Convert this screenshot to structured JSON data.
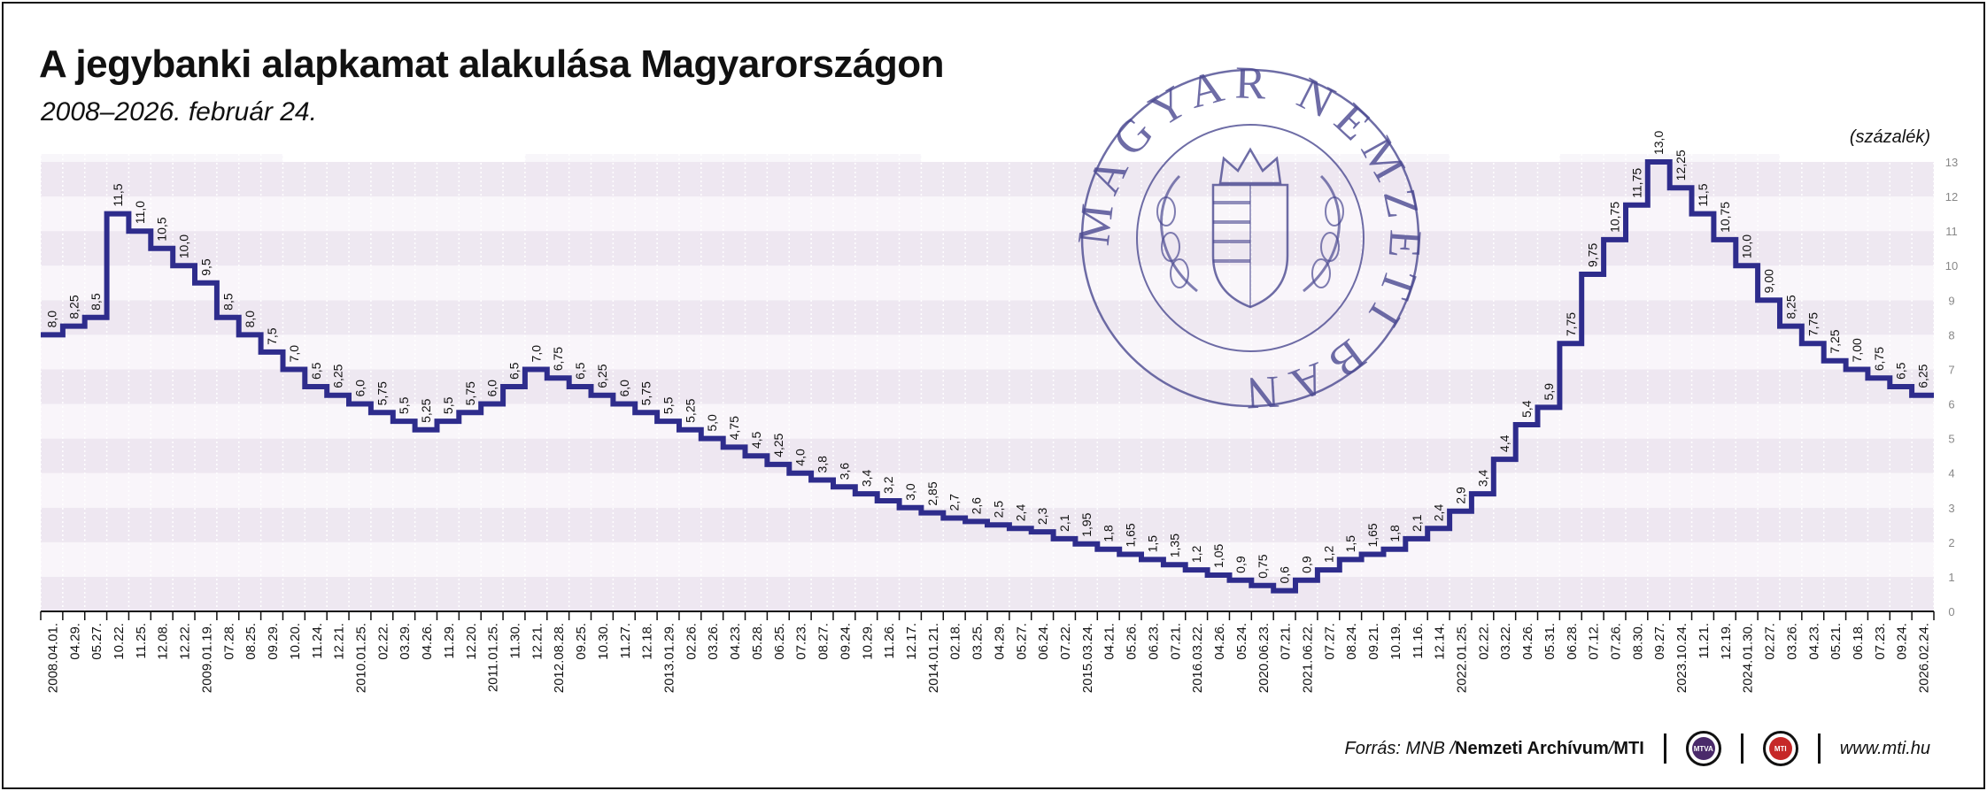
{
  "header": {
    "title": "A jegybanki alapkamat alakulása Magyarországon",
    "subtitle": "2008–2026. február 24.",
    "unit": "(százalék)"
  },
  "seal": {
    "text": "MAGYAR NEMZETI BANK",
    "color": "#4a4890"
  },
  "footer": {
    "source_prefix": "Forrás: MNB / ",
    "source_archive": "Nemzeti Archívum",
    "source_sep": " / ",
    "source_mti": "MTI",
    "logo1": "MTVA",
    "logo2": "MTI",
    "url": "www.mti.hu"
  },
  "colors": {
    "line": "#2e2c8c",
    "band_dark": "#ece6f0",
    "band_light": "#f8f5f9",
    "vband": "#f3eef5",
    "logo1": "#4a2a6a",
    "logo2": "#c62828"
  },
  "chart_data": {
    "type": "line",
    "step": true,
    "title": "A jegybanki alapkamat alakulása Magyarországon",
    "ylabel": "(százalék)",
    "ylim": [
      0,
      13
    ],
    "yticks": [
      "0",
      "1",
      "2",
      "3",
      "4",
      "5",
      "6",
      "7",
      "8",
      "9",
      "10",
      "11",
      "12",
      "13"
    ],
    "x": [
      "2008.04.01.",
      "04.29.",
      "05.27.",
      "10.22.",
      "11.25.",
      "12.08.",
      "12.22.",
      "2009.01.19.",
      "07.28.",
      "08.25.",
      "09.29.",
      "10.20.",
      "11.24.",
      "12.21.",
      "2010.01.25.",
      "02.22.",
      "03.29.",
      "04.26.",
      "11.29.",
      "12.20.",
      "2011.01.25.",
      "11.30.",
      "12.21.",
      "2012.08.28.",
      "09.25.",
      "10.30.",
      "11.27.",
      "12.18.",
      "2013.01.29.",
      "02.26.",
      "03.26.",
      "04.23.",
      "05.28.",
      "06.25.",
      "07.23.",
      "08.27.",
      "09.24.",
      "10.29.",
      "11.26.",
      "12.17.",
      "2014.01.21.",
      "02.18.",
      "03.25.",
      "04.29.",
      "05.27.",
      "06.24.",
      "07.22.",
      "2015.03.24.",
      "04.21.",
      "05.26.",
      "06.23.",
      "07.21.",
      "2016.03.22.",
      "04.26.",
      "05.24.",
      "2020.06.23.",
      "07.21.",
      "2021.06.22.",
      "07.27.",
      "08.24.",
      "09.21.",
      "10.19.",
      "11.16.",
      "12.14.",
      "2022.01.25.",
      "02.22.",
      "03.22.",
      "04.26.",
      "05.31.",
      "06.28.",
      "07.12.",
      "07.26.",
      "08.30.",
      "09.27.",
      "2023.10.24.",
      "11.21.",
      "12.19.",
      "2024.01.30.",
      "02.27.",
      "03.26.",
      "04.23.",
      "05.21.",
      "06.18.",
      "07.23.",
      "09.24.",
      "2026.02.24."
    ],
    "values": [
      8.0,
      8.25,
      8.5,
      11.5,
      11.0,
      10.5,
      10.0,
      9.5,
      8.5,
      8.0,
      7.5,
      7.0,
      6.5,
      6.25,
      6.0,
      5.75,
      5.5,
      5.25,
      5.5,
      5.75,
      6.0,
      6.5,
      7.0,
      6.75,
      6.5,
      6.25,
      6.0,
      5.75,
      5.5,
      5.25,
      5.0,
      4.75,
      4.5,
      4.25,
      4.0,
      3.8,
      3.6,
      3.4,
      3.2,
      3.0,
      2.85,
      2.7,
      2.6,
      2.5,
      2.4,
      2.3,
      2.1,
      1.95,
      1.8,
      1.65,
      1.5,
      1.35,
      1.2,
      1.05,
      0.9,
      0.75,
      0.6,
      0.9,
      1.2,
      1.5,
      1.65,
      1.8,
      2.1,
      2.4,
      2.9,
      3.4,
      4.4,
      5.4,
      5.9,
      7.75,
      9.75,
      10.75,
      11.75,
      13.0,
      12.25,
      11.5,
      10.75,
      10.0,
      9.0,
      8.25,
      7.75,
      7.25,
      7.0,
      6.75,
      6.5,
      6.25
    ],
    "labels": [
      "8,0",
      "8,25",
      "8,5",
      "11,5",
      "11,0",
      "10,5",
      "10,0",
      "9,5",
      "8,5",
      "8,0",
      "7,5",
      "7,0",
      "6,5",
      "6,25",
      "6,0",
      "5,75",
      "5,5",
      "5,25",
      "5,5",
      "5,75",
      "6,0",
      "6,5",
      "7,0",
      "6,75",
      "6,5",
      "6,25",
      "6,0",
      "5,75",
      "5,5",
      "5,25",
      "5,0",
      "4,75",
      "4,5",
      "4,25",
      "4,0",
      "3,8",
      "3,6",
      "3,4",
      "3,2",
      "3,0",
      "2,85",
      "2,7",
      "2,6",
      "2,5",
      "2,4",
      "2,3",
      "2,1",
      "1,95",
      "1,8",
      "1,65",
      "1,5",
      "1,35",
      "1,2",
      "1,05",
      "0,9",
      "0,75",
      "0,6",
      "0,9",
      "1,2",
      "1,5",
      "1,65",
      "1,8",
      "2,1",
      "2,4",
      "2,9",
      "3,4",
      "4,4",
      "5,4",
      "5,9",
      "7,75",
      "9,75",
      "10,75",
      "11,75",
      "13,0",
      "12,25",
      "11,5",
      "10,75",
      "10,0",
      "9,00",
      "8,25",
      "7,75",
      "7,25",
      "7,00",
      "6,75",
      "6,5",
      "6,25"
    ],
    "grid": true
  }
}
